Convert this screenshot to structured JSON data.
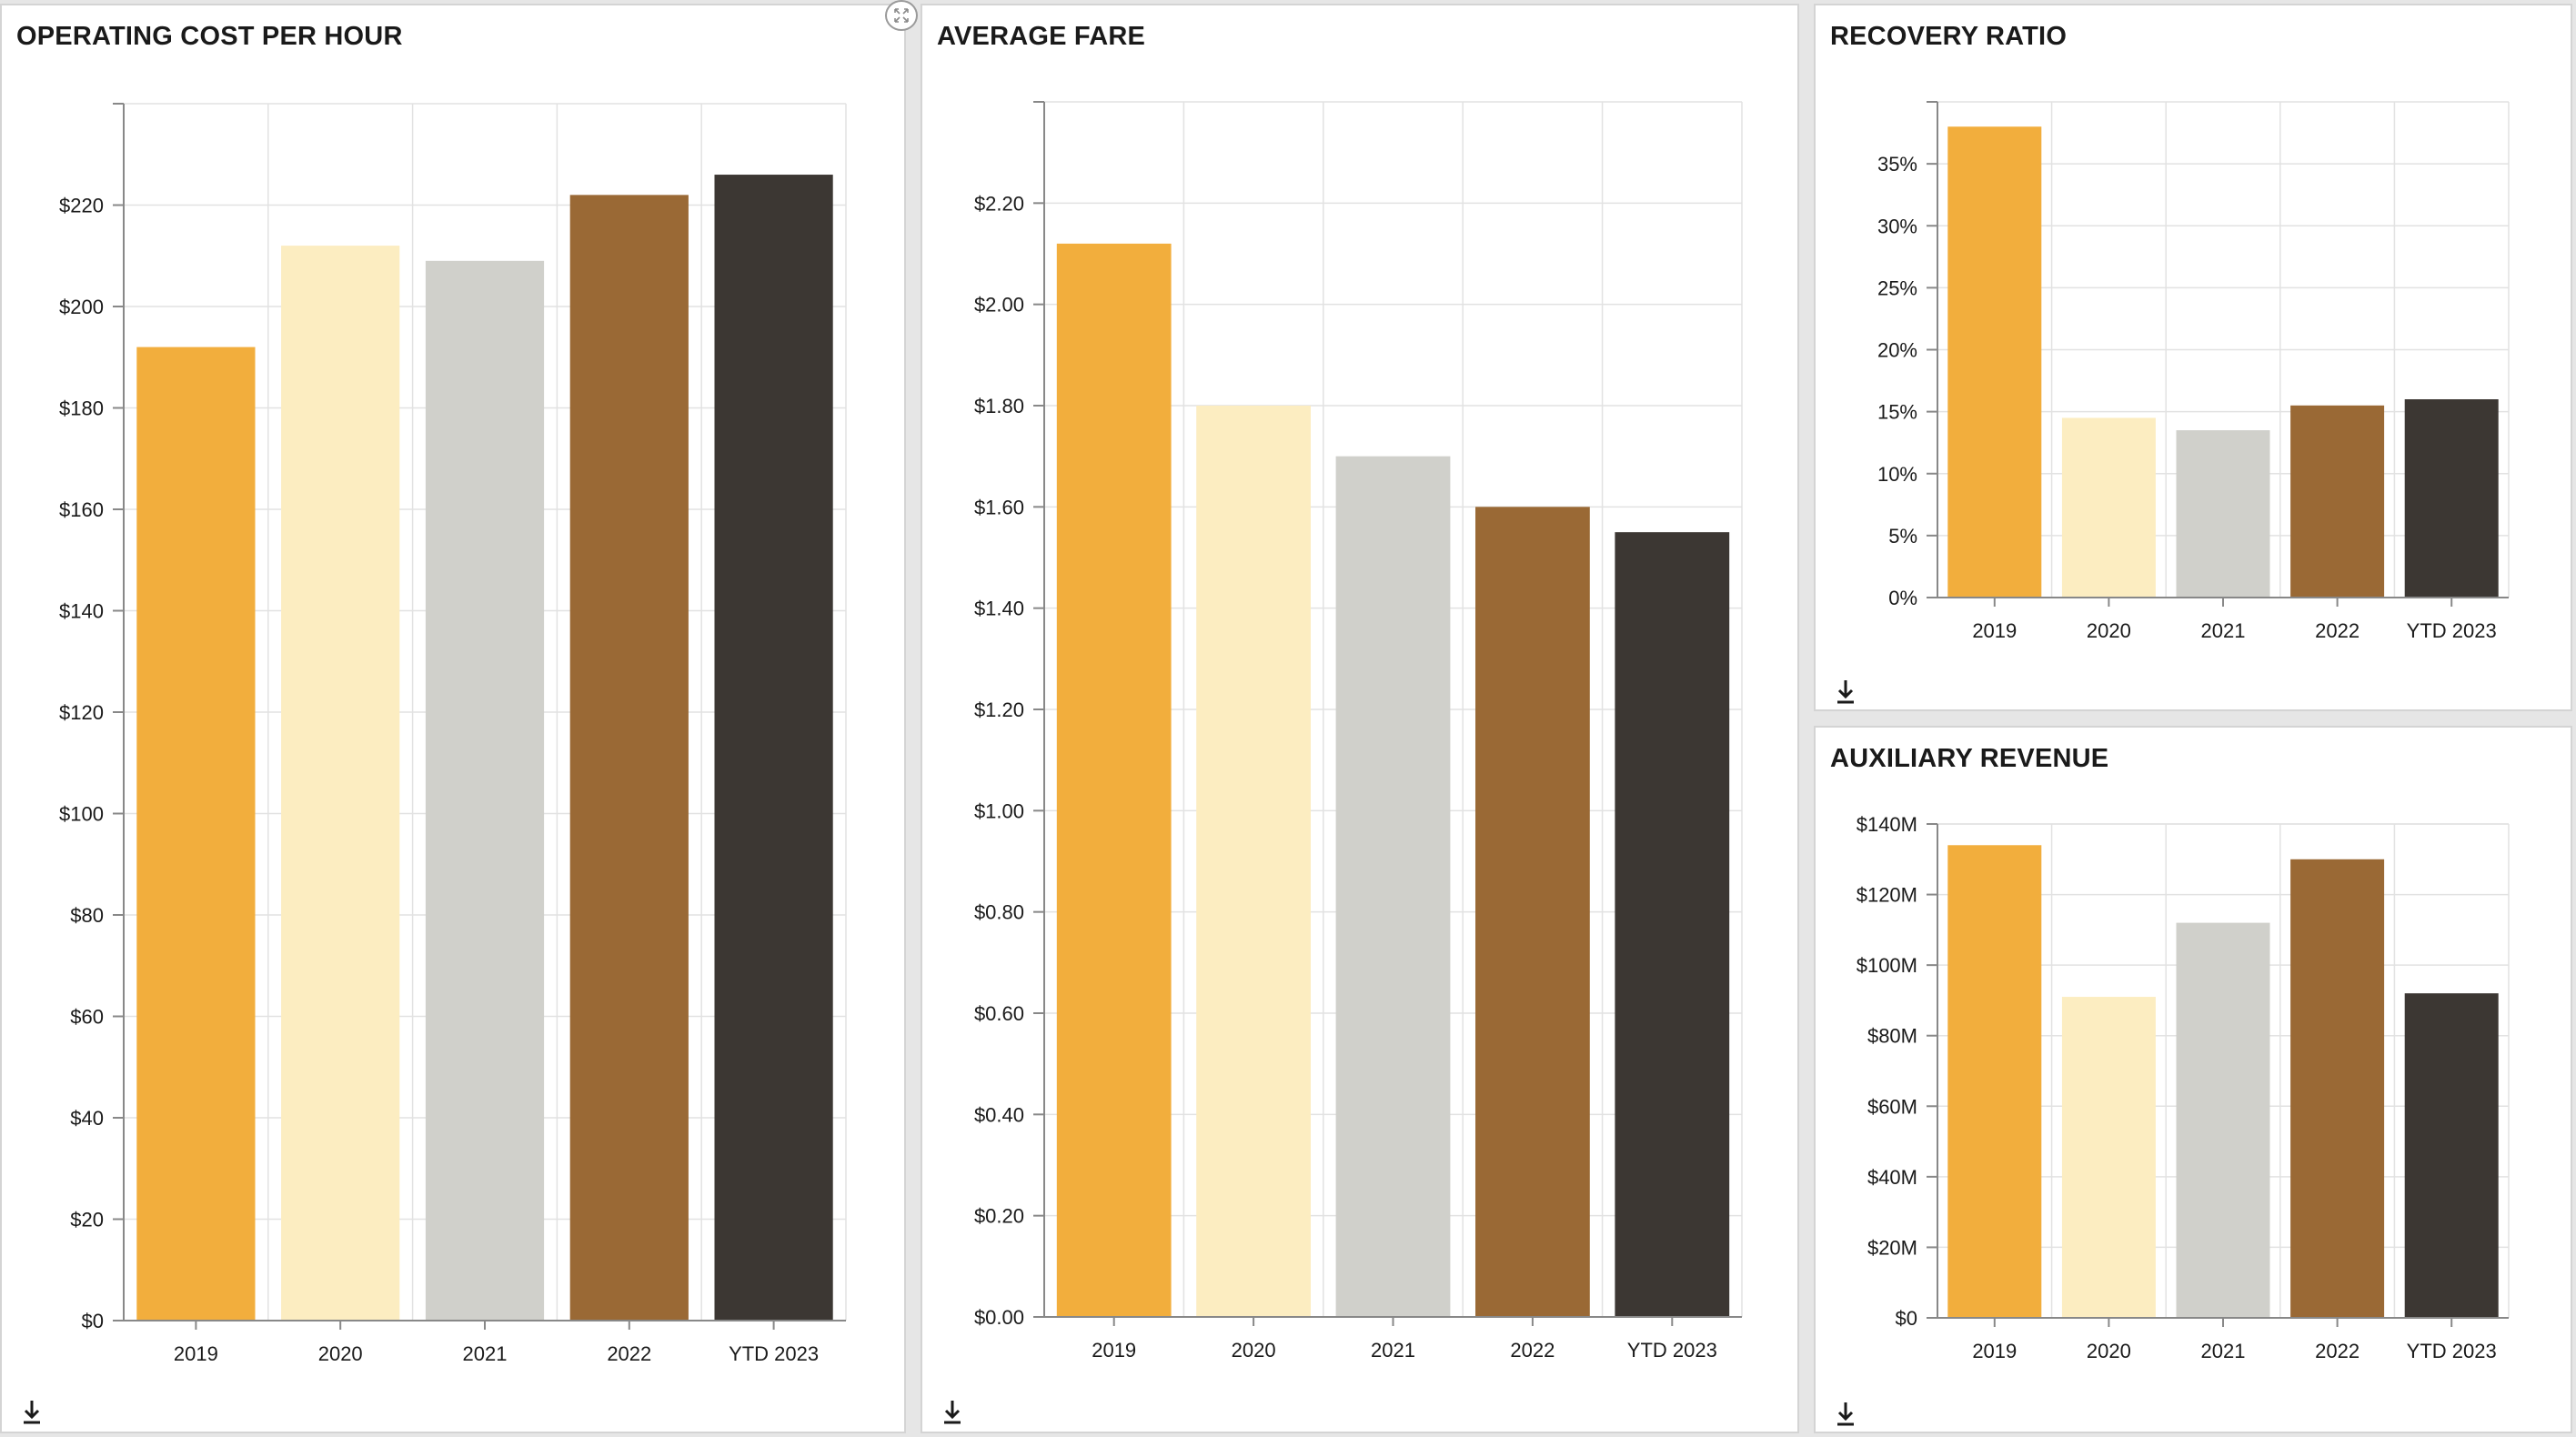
{
  "colors": {
    "series": [
      "#F2AE3D",
      "#FCEDC1",
      "#D0D0CB",
      "#9A6935",
      "#3C3733"
    ],
    "grid": "#e2e2e2",
    "axis": "#888888",
    "text": "#1a1a1a"
  },
  "icons": {
    "download": "download-icon",
    "expand": "expand-icon"
  },
  "panels": {
    "operating_cost": {
      "title": "OPERATING COST PER HOUR"
    },
    "average_fare": {
      "title": "AVERAGE FARE"
    },
    "recovery_ratio": {
      "title": "RECOVERY RATIO"
    },
    "auxiliary_revenue": {
      "title": "AUXILIARY REVENUE"
    }
  },
  "chart_data": [
    {
      "id": "operating_cost",
      "type": "bar",
      "title": "OPERATING COST PER HOUR",
      "categories": [
        "2019",
        "2020",
        "2021",
        "2022",
        "YTD 2023"
      ],
      "values": [
        192,
        212,
        209,
        222,
        226
      ],
      "ylim": [
        0,
        240
      ],
      "yticks": [
        0,
        20,
        40,
        60,
        80,
        100,
        120,
        140,
        160,
        180,
        200,
        220
      ],
      "ytick_labels": [
        "$0",
        "$20",
        "$40",
        "$60",
        "$80",
        "$100",
        "$120",
        "$140",
        "$160",
        "$180",
        "$200",
        "$220"
      ],
      "grid": true
    },
    {
      "id": "average_fare",
      "type": "bar",
      "title": "AVERAGE FARE",
      "categories": [
        "2019",
        "2020",
        "2021",
        "2022",
        "YTD 2023"
      ],
      "values": [
        2.12,
        1.8,
        1.7,
        1.6,
        1.55
      ],
      "ylim": [
        0,
        2.4
      ],
      "yticks": [
        0,
        0.2,
        0.4,
        0.6,
        0.8,
        1.0,
        1.2,
        1.4,
        1.6,
        1.8,
        2.0,
        2.2
      ],
      "ytick_labels": [
        "$0.00",
        "$0.20",
        "$0.40",
        "$0.60",
        "$0.80",
        "$1.00",
        "$1.20",
        "$1.40",
        "$1.60",
        "$1.80",
        "$2.00",
        "$2.20"
      ],
      "grid": true
    },
    {
      "id": "recovery_ratio",
      "type": "bar",
      "title": "RECOVERY RATIO",
      "categories": [
        "2019",
        "2020",
        "2021",
        "2022",
        "YTD 2023"
      ],
      "values": [
        38,
        14.5,
        13.5,
        15.5,
        16
      ],
      "ylim": [
        0,
        40
      ],
      "yticks": [
        0,
        5,
        10,
        15,
        20,
        25,
        30,
        35
      ],
      "ytick_labels": [
        "0%",
        "5%",
        "10%",
        "15%",
        "20%",
        "25%",
        "30%",
        "35%"
      ],
      "grid": true
    },
    {
      "id": "auxiliary_revenue",
      "type": "bar",
      "title": "AUXILIARY REVENUE",
      "categories": [
        "2019",
        "2020",
        "2021",
        "2022",
        "YTD 2023"
      ],
      "values": [
        134,
        91,
        112,
        130,
        92
      ],
      "ylim": [
        0,
        140
      ],
      "yticks": [
        0,
        20,
        40,
        60,
        80,
        100,
        120,
        140
      ],
      "ytick_labels": [
        "$0",
        "$20M",
        "$40M",
        "$60M",
        "$80M",
        "$100M",
        "$120M",
        "$140M"
      ],
      "grid": true
    }
  ]
}
